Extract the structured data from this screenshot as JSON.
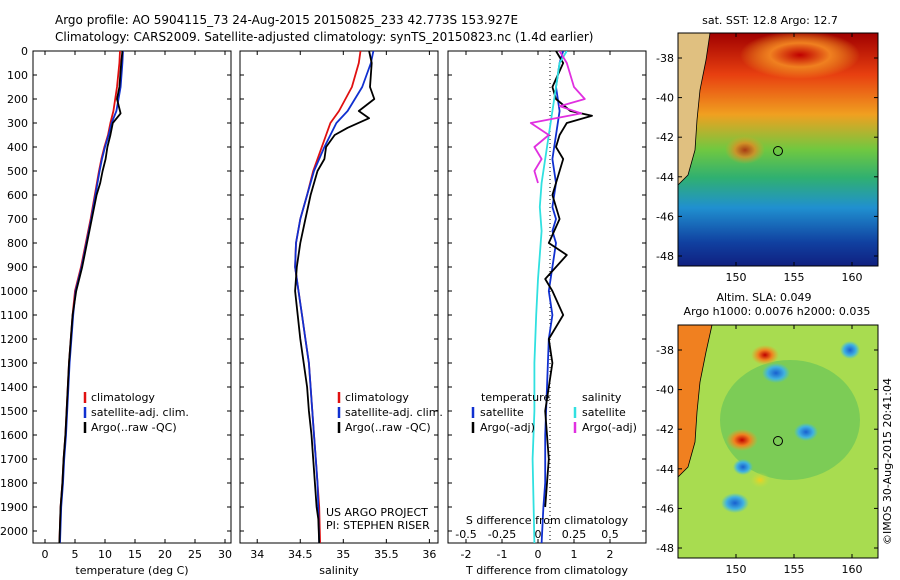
{
  "header": {
    "line1": "Argo profile: AO 5904115_73 24-Aug-2015 20150825_233 42.773S 153.927E",
    "line2": "Climatology: CARS2009. Satellite-adjusted climatology: synTS_20150823.nc (1.4d earlier)"
  },
  "colors": {
    "clim": "#e01010",
    "sat": "#1030d0",
    "argo": "#000000",
    "sat_s": "#30e0e0",
    "argo_s": "#e030e0"
  },
  "chart_data": [
    {
      "type": "line",
      "title": "",
      "xlabel": "temperature (deg C)",
      "ylabel": "",
      "xlim": [
        -2,
        31
      ],
      "ylim": [
        2050,
        0
      ],
      "xticks": [
        0,
        5,
        10,
        15,
        20,
        25,
        30
      ],
      "yticks": [
        0,
        100,
        200,
        300,
        400,
        500,
        600,
        700,
        800,
        900,
        1000,
        1100,
        1200,
        1300,
        1400,
        1500,
        1600,
        1700,
        1800,
        1900,
        2000
      ],
      "series": [
        {
          "name": "climatology",
          "color": "clim",
          "x": [
            12.5,
            12.4,
            12.0,
            11.4,
            10.9,
            10.5,
            9.9,
            9.4,
            9.0,
            8.3,
            7.6,
            6.8,
            6.0,
            5.0,
            4.6,
            4.3,
            4.0,
            3.8,
            3.6,
            3.4,
            3.1,
            2.9,
            2.6,
            2.4
          ],
          "y": [
            0,
            50,
            150,
            250,
            300,
            350,
            400,
            450,
            500,
            600,
            700,
            800,
            900,
            1000,
            1100,
            1200,
            1300,
            1400,
            1500,
            1600,
            1700,
            1800,
            1900,
            2050
          ]
        },
        {
          "name": "satellite-adj. clim.",
          "color": "sat",
          "x": [
            13.0,
            12.9,
            12.6,
            11.9,
            11.1,
            10.6,
            10.0,
            9.5,
            9.1,
            8.4,
            7.7,
            6.9,
            6.1,
            5.1,
            4.7,
            4.4,
            4.1,
            3.9,
            3.7,
            3.5,
            3.2,
            3.0,
            2.7,
            2.5
          ],
          "y": [
            0,
            50,
            150,
            250,
            300,
            350,
            400,
            450,
            500,
            600,
            700,
            800,
            900,
            1000,
            1100,
            1200,
            1300,
            1400,
            1500,
            1600,
            1700,
            1800,
            1900,
            2050
          ]
        },
        {
          "name": "Argo(..raw -QC)",
          "color": "argo",
          "x": [
            12.9,
            12.7,
            12.4,
            12.0,
            12.6,
            11.3,
            10.9,
            10.4,
            10.1,
            9.6,
            9.2,
            8.6,
            7.8,
            7.0,
            6.2,
            5.2,
            4.6,
            4.3,
            4.0,
            3.8,
            3.6,
            3.4,
            3.1,
            2.9,
            2.6,
            2.4
          ],
          "y": [
            0,
            50,
            150,
            200,
            260,
            300,
            350,
            400,
            450,
            500,
            550,
            600,
            700,
            800,
            900,
            1000,
            1100,
            1200,
            1300,
            1400,
            1500,
            1600,
            1700,
            1800,
            1900,
            2050
          ]
        }
      ],
      "legend": [
        "climatology",
        "satellite-adj. clim.",
        "Argo(..raw -QC)"
      ]
    },
    {
      "type": "line",
      "title": "",
      "xlabel": "salinity",
      "ylabel": "",
      "xlim": [
        33.8,
        36.1
      ],
      "ylim": [
        2050,
        0
      ],
      "xticks": [
        34,
        34.5,
        35,
        35.5,
        36
      ],
      "series": [
        {
          "name": "climatology",
          "color": "clim",
          "x": [
            35.2,
            35.18,
            35.1,
            34.95,
            34.85,
            34.8,
            34.75,
            34.7,
            34.65,
            34.58,
            34.5,
            34.45,
            34.44,
            34.48,
            34.52,
            34.56,
            34.6,
            34.62,
            34.64,
            34.66,
            34.68,
            34.7,
            34.72,
            34.73
          ],
          "y": [
            0,
            50,
            150,
            250,
            300,
            350,
            400,
            450,
            500,
            600,
            700,
            800,
            900,
            1000,
            1100,
            1200,
            1300,
            1400,
            1500,
            1600,
            1700,
            1800,
            1900,
            2050
          ]
        },
        {
          "name": "satellite-adj. clim.",
          "color": "sat",
          "x": [
            35.35,
            35.32,
            35.22,
            35.05,
            34.92,
            34.85,
            34.78,
            34.72,
            34.66,
            34.58,
            34.5,
            34.45,
            34.44,
            34.48,
            34.52,
            34.56,
            34.6,
            34.62,
            34.64,
            34.66,
            34.68,
            34.7,
            34.71,
            34.72
          ],
          "y": [
            0,
            50,
            150,
            250,
            300,
            350,
            400,
            450,
            500,
            600,
            700,
            800,
            900,
            1000,
            1100,
            1200,
            1300,
            1400,
            1500,
            1600,
            1700,
            1800,
            1900,
            2050
          ]
        },
        {
          "name": "Argo(..raw -QC)",
          "color": "argo",
          "x": [
            35.3,
            35.33,
            35.31,
            35.36,
            35.18,
            35.3,
            35.05,
            34.9,
            34.8,
            34.78,
            34.7,
            34.62,
            34.56,
            34.5,
            34.46,
            34.44,
            34.47,
            34.5,
            34.54,
            34.58,
            34.6,
            34.63,
            34.65,
            34.67,
            34.69,
            34.71,
            34.72
          ],
          "y": [
            0,
            50,
            150,
            200,
            250,
            280,
            320,
            350,
            400,
            450,
            500,
            600,
            700,
            800,
            900,
            1000,
            1100,
            1200,
            1300,
            1400,
            1500,
            1600,
            1700,
            1800,
            1900,
            1950,
            2050
          ]
        }
      ],
      "legend": [
        "climatology",
        "satellite-adj. clim.",
        "Argo(..raw -QC)"
      ],
      "annotations": [
        "US ARGO PROJECT",
        "PI: STEPHEN RISER"
      ]
    },
    {
      "type": "line",
      "title": "",
      "xlabel": "T difference from climatology",
      "x2label": "S difference from climatology",
      "ylabel": "",
      "xlim": [
        -2.5,
        3
      ],
      "ylim": [
        2050,
        0
      ],
      "xticks": [
        -2,
        -1,
        0,
        1,
        2
      ],
      "xticklabels": [
        "-2",
        "-1",
        "0",
        "1",
        "2"
      ],
      "x2ticks": [
        -2,
        -1,
        0,
        1,
        2
      ],
      "x2ticklabels": [
        "-0.5",
        "-0.25",
        "0",
        "0.25",
        "0.5"
      ],
      "series": [
        {
          "name": "temperature satellite",
          "color": "sat",
          "x": [
            0.7,
            0.6,
            0.5,
            0.6,
            0.5,
            0.4,
            0.5,
            0.4,
            0.5,
            0.4,
            0.5,
            0.4,
            0.3,
            0.4,
            0.3,
            0.25,
            0.2,
            0.2,
            0.15,
            0.1
          ],
          "y": [
            0,
            50,
            150,
            250,
            350,
            450,
            550,
            650,
            700,
            750,
            800,
            900,
            1000,
            1100,
            1200,
            1400,
            1600,
            1800,
            1900,
            2050
          ]
        },
        {
          "name": "temperature Argo(-adj)",
          "color": "argo",
          "x": [
            0.5,
            0.7,
            0.4,
            0.5,
            0.9,
            1.5,
            0.8,
            0.6,
            0.5,
            0.7,
            0.6,
            0.4,
            0.6,
            0.3,
            0.8,
            0.5,
            0.2,
            0.4,
            0.7,
            0.3,
            0.4,
            0.2,
            0.3,
            0.2
          ],
          "y": [
            0,
            50,
            150,
            200,
            250,
            270,
            300,
            350,
            400,
            450,
            500,
            600,
            700,
            800,
            850,
            900,
            950,
            1000,
            1100,
            1200,
            1300,
            1500,
            1700,
            1900
          ]
        },
        {
          "name": "salinity satellite",
          "color": "sat_s",
          "x": [
            0.8,
            0.6,
            0.5,
            0.4,
            0.3,
            0.2,
            0.1,
            0.05,
            0.1,
            0.05,
            0.0,
            -0.05,
            -0.1,
            -0.1,
            -0.15,
            -0.1
          ],
          "y": [
            0,
            50,
            150,
            250,
            350,
            450,
            550,
            650,
            750,
            850,
            950,
            1100,
            1300,
            1500,
            1700,
            2050
          ]
        },
        {
          "name": "salinity Argo(-adj)",
          "color": "argo_s",
          "x": [
            0.6,
            0.8,
            1.0,
            1.3,
            0.6,
            1.2,
            -0.2,
            0.3,
            -0.1,
            0.1,
            -0.1,
            0.0
          ],
          "y": [
            0,
            50,
            150,
            200,
            230,
            260,
            300,
            350,
            400,
            450,
            500,
            550
          ]
        }
      ],
      "legend_headers": [
        "temperature",
        "salinity"
      ],
      "legend": [
        "satellite",
        "Argo(-adj)",
        "satellite",
        "Argo(-adj)"
      ]
    }
  ],
  "maps": {
    "top": {
      "title": "sat. SST: 12.8  Argo: 12.7",
      "yticks": [
        "-38",
        "-40",
        "-42",
        "-44",
        "-46",
        "-48"
      ],
      "xticks": [
        "150",
        "155",
        "160"
      ]
    },
    "bottom": {
      "title1": "Altim. SLA: 0.049",
      "title2": "Argo h1000: 0.0076 h2000: 0.035",
      "yticks": [
        "-38",
        "-40",
        "-42",
        "-44",
        "-46",
        "-48"
      ],
      "xticks": [
        "150",
        "155",
        "160"
      ]
    }
  },
  "credit": "©IMOS 30-Aug-2015 20:41:04"
}
